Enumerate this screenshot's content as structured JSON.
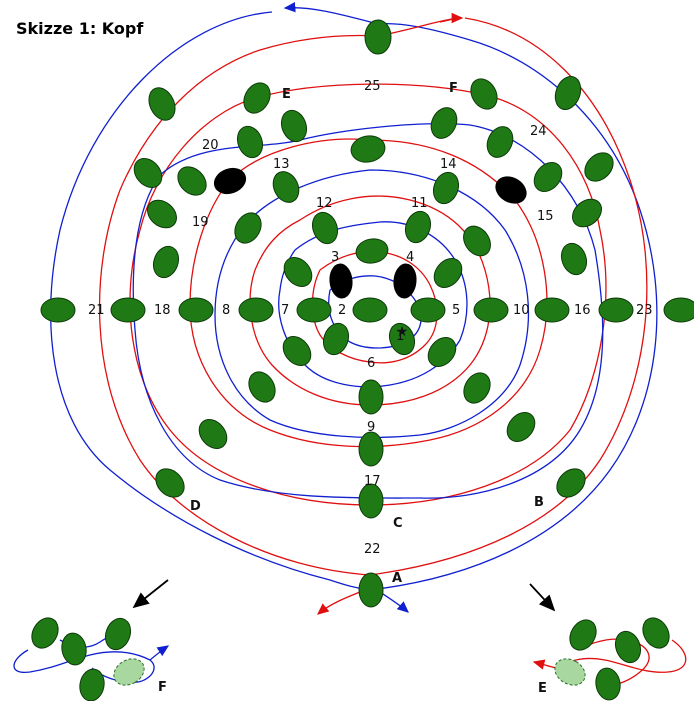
{
  "title": "Skizze 1: Kopf",
  "colors": {
    "bead": "#1f7a16",
    "bead_dark": "#000000",
    "bead_ghost": "#a8d8a0",
    "wire_red": "#e01010",
    "wire_blue": "#1020d0"
  },
  "numbers": [
    "1",
    "2",
    "3",
    "4",
    "5",
    "6",
    "7",
    "8",
    "9",
    "10",
    "11",
    "12",
    "13",
    "14",
    "15",
    "16",
    "17",
    "18",
    "19",
    "20",
    "21",
    "22",
    "23",
    "24",
    "25"
  ],
  "letters": [
    "A",
    "B",
    "C",
    "D",
    "E",
    "F"
  ],
  "star": "★",
  "inset_left_label": "F",
  "inset_right_label": "E"
}
